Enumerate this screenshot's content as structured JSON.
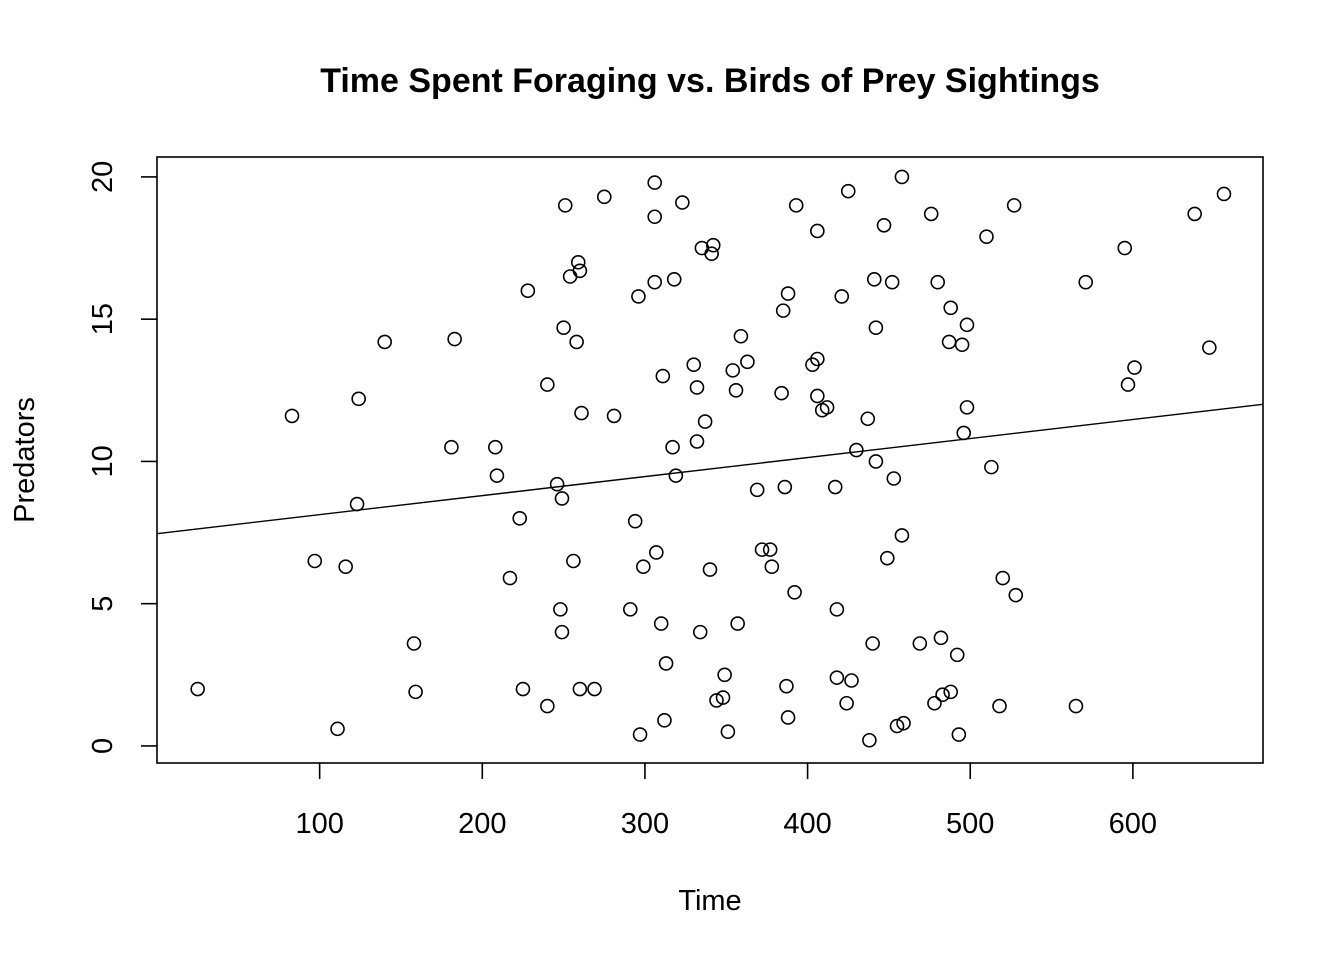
{
  "chart_data": {
    "type": "scatter",
    "title": "Time Spent Foraging vs. Birds of Prey Sightings",
    "xlabel": "Time",
    "ylabel": "Predators",
    "xlim": [
      0,
      680
    ],
    "ylim": [
      -0.6,
      20.7
    ],
    "x_ticks": [
      100,
      200,
      300,
      400,
      500,
      600
    ],
    "y_ticks": [
      0,
      5,
      10,
      15,
      20
    ],
    "grid": false,
    "legend": "none",
    "trend_line": {
      "intercept": 7.46,
      "slope": 0.00669
    },
    "points": [
      [
        25,
        2.0
      ],
      [
        83,
        11.6
      ],
      [
        97,
        6.5
      ],
      [
        111,
        0.6
      ],
      [
        116,
        6.3
      ],
      [
        123,
        8.5
      ],
      [
        124,
        12.2
      ],
      [
        140,
        14.2
      ],
      [
        158,
        3.6
      ],
      [
        159,
        1.9
      ],
      [
        181,
        10.5
      ],
      [
        183,
        14.3
      ],
      [
        208,
        10.5
      ],
      [
        209,
        9.5
      ],
      [
        217,
        5.9
      ],
      [
        223,
        8.0
      ],
      [
        225,
        2.0
      ],
      [
        228,
        16.0
      ],
      [
        240,
        12.7
      ],
      [
        240,
        1.4
      ],
      [
        246,
        9.2
      ],
      [
        248,
        4.8
      ],
      [
        249,
        8.7
      ],
      [
        249,
        4.0
      ],
      [
        250,
        14.7
      ],
      [
        251,
        19.0
      ],
      [
        254,
        16.5
      ],
      [
        256,
        6.5
      ],
      [
        258,
        14.2
      ],
      [
        259,
        17.0
      ],
      [
        260,
        16.7
      ],
      [
        260,
        2.0
      ],
      [
        261,
        11.7
      ],
      [
        269,
        2.0
      ],
      [
        275,
        19.3
      ],
      [
        281,
        11.6
      ],
      [
        291,
        4.8
      ],
      [
        294,
        7.9
      ],
      [
        296,
        15.8
      ],
      [
        297,
        0.4
      ],
      [
        299,
        6.3
      ],
      [
        306,
        19.8
      ],
      [
        306,
        18.6
      ],
      [
        306,
        16.3
      ],
      [
        307,
        6.8
      ],
      [
        310,
        4.3
      ],
      [
        311,
        13.0
      ],
      [
        312,
        0.9
      ],
      [
        313,
        2.9
      ],
      [
        317,
        10.5
      ],
      [
        318,
        16.4
      ],
      [
        319,
        9.5
      ],
      [
        323,
        19.1
      ],
      [
        330,
        13.4
      ],
      [
        332,
        10.7
      ],
      [
        332,
        12.6
      ],
      [
        334,
        4.0
      ],
      [
        335,
        17.5
      ],
      [
        337,
        11.4
      ],
      [
        340,
        6.2
      ],
      [
        341,
        17.3
      ],
      [
        342,
        17.6
      ],
      [
        344,
        1.6
      ],
      [
        348,
        1.7
      ],
      [
        349,
        2.5
      ],
      [
        351,
        0.5
      ],
      [
        354,
        13.2
      ],
      [
        356,
        12.5
      ],
      [
        357,
        4.3
      ],
      [
        359,
        14.4
      ],
      [
        363,
        13.5
      ],
      [
        369,
        9.0
      ],
      [
        372,
        6.9
      ],
      [
        377,
        6.9
      ],
      [
        378,
        6.3
      ],
      [
        384,
        12.4
      ],
      [
        385,
        15.3
      ],
      [
        386,
        9.1
      ],
      [
        387,
        2.1
      ],
      [
        388,
        15.9
      ],
      [
        388,
        1.0
      ],
      [
        392,
        5.4
      ],
      [
        393,
        19.0
      ],
      [
        403,
        13.4
      ],
      [
        406,
        13.6
      ],
      [
        406,
        12.3
      ],
      [
        406,
        18.1
      ],
      [
        409,
        11.8
      ],
      [
        412,
        11.9
      ],
      [
        417,
        9.1
      ],
      [
        418,
        4.8
      ],
      [
        418,
        2.4
      ],
      [
        421,
        15.8
      ],
      [
        424,
        1.5
      ],
      [
        425,
        19.5
      ],
      [
        427,
        2.3
      ],
      [
        430,
        10.4
      ],
      [
        437,
        11.5
      ],
      [
        438,
        0.2
      ],
      [
        440,
        3.6
      ],
      [
        441,
        16.4
      ],
      [
        442,
        10.0
      ],
      [
        442,
        14.7
      ],
      [
        447,
        18.3
      ],
      [
        449,
        6.6
      ],
      [
        452,
        16.3
      ],
      [
        453,
        9.4
      ],
      [
        455,
        0.7
      ],
      [
        458,
        20.0
      ],
      [
        458,
        7.4
      ],
      [
        459,
        0.8
      ],
      [
        469,
        3.6
      ],
      [
        476,
        18.7
      ],
      [
        478,
        1.5
      ],
      [
        480,
        16.3
      ],
      [
        482,
        3.8
      ],
      [
        483,
        1.8
      ],
      [
        487,
        14.2
      ],
      [
        488,
        15.4
      ],
      [
        488,
        1.9
      ],
      [
        492,
        3.2
      ],
      [
        493,
        0.4
      ],
      [
        495,
        14.1
      ],
      [
        496,
        11.0
      ],
      [
        498,
        11.9
      ],
      [
        498,
        14.8
      ],
      [
        510,
        17.9
      ],
      [
        513,
        9.8
      ],
      [
        518,
        1.4
      ],
      [
        520,
        5.9
      ],
      [
        527,
        19.0
      ],
      [
        528,
        5.3
      ],
      [
        565,
        1.4
      ],
      [
        571,
        16.3
      ],
      [
        595,
        17.5
      ],
      [
        597,
        12.7
      ],
      [
        601,
        13.3
      ],
      [
        638,
        18.7
      ],
      [
        647,
        14.0
      ],
      [
        656,
        19.4
      ]
    ]
  }
}
